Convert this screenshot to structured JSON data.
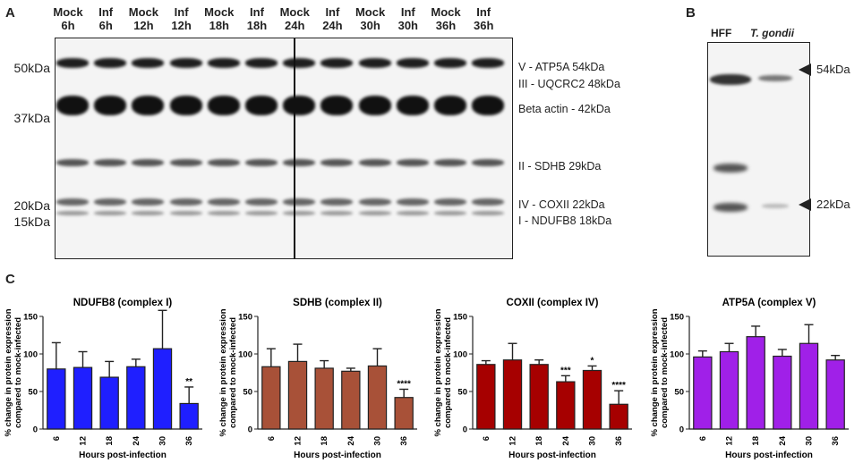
{
  "panels": {
    "a": "A",
    "b": "B",
    "c": "C"
  },
  "blot_a": {
    "lanes": [
      {
        "top": "Mock",
        "bottom": "6h"
      },
      {
        "top": "Inf",
        "bottom": "6h"
      },
      {
        "top": "Mock",
        "bottom": "12h"
      },
      {
        "top": "Inf",
        "bottom": "12h"
      },
      {
        "top": "Mock",
        "bottom": "18h"
      },
      {
        "top": "Inf",
        "bottom": "18h"
      },
      {
        "top": "Mock",
        "bottom": "24h"
      },
      {
        "top": "Inf",
        "bottom": "24h"
      },
      {
        "top": "Mock",
        "bottom": "30h"
      },
      {
        "top": "Inf",
        "bottom": "30h"
      },
      {
        "top": "Mock",
        "bottom": "36h"
      },
      {
        "top": "Inf",
        "bottom": "36h"
      }
    ],
    "markers": [
      "50kDa",
      "37kDa",
      "20kDa",
      "15kDa"
    ],
    "band_labels": [
      "V - ATP5A 54kDa",
      "III - UQCRC2 48kDa",
      "Beta actin - 42kDa",
      "II - SDHB 29kDa",
      "IV - COXII 22kDa",
      "I - NDUFB8 18kDa"
    ]
  },
  "blot_b": {
    "lanes": [
      "HFF",
      "T. gondii"
    ],
    "markers": [
      "54kDa",
      "22kDa"
    ]
  },
  "chart_data": [
    {
      "type": "bar",
      "title": "NDUFB8 (complex I)",
      "color": "#1f1fff",
      "categories": [
        "6",
        "12",
        "18",
        "24",
        "30",
        "36"
      ],
      "values": [
        80,
        82,
        69,
        83,
        107,
        34
      ],
      "errors": [
        35,
        21,
        21,
        10,
        51,
        22
      ],
      "significance": [
        "",
        "",
        "",
        "",
        "",
        "**"
      ],
      "ylim": [
        0,
        150
      ],
      "yticks": [
        0,
        50,
        100,
        150
      ],
      "xlabel": "Hours post-infection",
      "ylabel": "% change in protein expression compared to mock-infected"
    },
    {
      "type": "bar",
      "title": "SDHB (complex  II)",
      "color": "#a85138",
      "categories": [
        "6",
        "12",
        "18",
        "24",
        "30",
        "36"
      ],
      "values": [
        83,
        90,
        81,
        77,
        84,
        42
      ],
      "errors": [
        24,
        23,
        10,
        4,
        23,
        11
      ],
      "significance": [
        "",
        "",
        "",
        "",
        "",
        "****"
      ],
      "ylim": [
        0,
        150
      ],
      "yticks": [
        0,
        50,
        100,
        150
      ],
      "xlabel": "Hours post-infection",
      "ylabel": "% change in protein expression compared to mock-infected"
    },
    {
      "type": "bar",
      "title": "COXII (complex IV)",
      "color": "#a60000",
      "categories": [
        "6",
        "12",
        "18",
        "24",
        "30",
        "36"
      ],
      "values": [
        86,
        92,
        86,
        63,
        78,
        33
      ],
      "errors": [
        5,
        22,
        6,
        8,
        6,
        18
      ],
      "significance": [
        "",
        "",
        "",
        "***",
        "*",
        "****"
      ],
      "ylim": [
        0,
        150
      ],
      "yticks": [
        0,
        50,
        100,
        150
      ],
      "xlabel": "Hours post-infection",
      "ylabel": "% change in protein expression compared to mock-infected"
    },
    {
      "type": "bar",
      "title": "ATP5A (complex V)",
      "color": "#a020e8",
      "categories": [
        "6",
        "12",
        "18",
        "24",
        "30",
        "36"
      ],
      "values": [
        96,
        103,
        123,
        97,
        114,
        92
      ],
      "errors": [
        8,
        11,
        14,
        9,
        25,
        6
      ],
      "significance": [
        "",
        "",
        "",
        "",
        "",
        ""
      ],
      "ylim": [
        0,
        150
      ],
      "yticks": [
        0,
        50,
        100,
        150
      ],
      "xlabel": "Hours post-infection",
      "ylabel": "% change in protein expression compared to mock-infected"
    }
  ]
}
